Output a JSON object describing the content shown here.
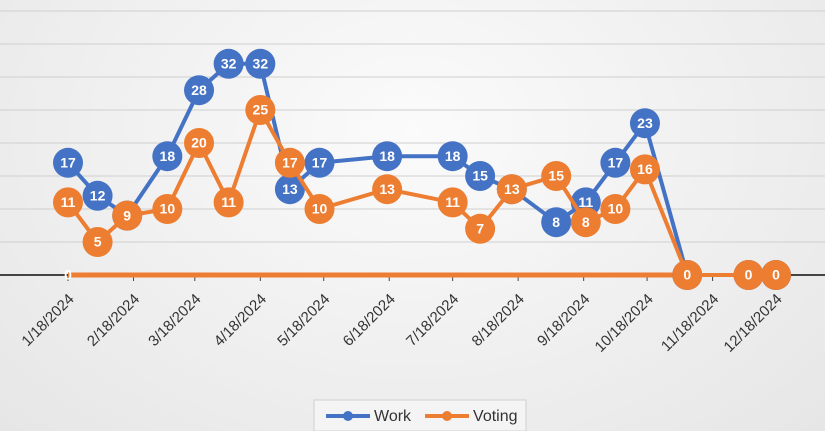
{
  "chart_data": {
    "type": "line",
    "x": [
      0,
      14,
      28,
      47,
      62,
      76,
      91,
      105,
      119,
      151,
      182,
      195,
      210,
      231,
      245,
      259,
      273,
      293,
      322,
      335
    ],
    "xlim": [
      0,
      335
    ],
    "xticks": [
      {
        "value": 0,
        "label": "1/18/2024"
      },
      {
        "value": 31,
        "label": "2/18/2024"
      },
      {
        "value": 60,
        "label": "3/18/2024"
      },
      {
        "value": 91,
        "label": "4/18/2024"
      },
      {
        "value": 121,
        "label": "5/18/2024"
      },
      {
        "value": 152,
        "label": "6/18/2024"
      },
      {
        "value": 182,
        "label": "7/18/2024"
      },
      {
        "value": 213,
        "label": "8/18/2024"
      },
      {
        "value": 244,
        "label": "9/18/2024"
      },
      {
        "value": 274,
        "label": "10/18/2024"
      },
      {
        "value": 305,
        "label": "11/18/2024"
      },
      {
        "value": 335,
        "label": "12/18/2024"
      }
    ],
    "ylim": [
      0,
      40
    ],
    "yticks": [
      0,
      5,
      10,
      15,
      20,
      25,
      30,
      35,
      40
    ],
    "grid": true,
    "legend": "bottom",
    "series": [
      {
        "color": "#ed7d31",
        "values": [
          0,
          0,
          0,
          0,
          0,
          0,
          0,
          0,
          0,
          0,
          0,
          0,
          0,
          0,
          0,
          0,
          0,
          0,
          null,
          null
        ]
      },
      {
        "name": "Work",
        "color": "#4472c4",
        "values": [
          17,
          12,
          9,
          18,
          28,
          32,
          32,
          13,
          17,
          18,
          18,
          15,
          13,
          8,
          11,
          17,
          23,
          0,
          0,
          0
        ]
      },
      {
        "name": "Voting",
        "color": "#ed7d31",
        "values": [
          11,
          5,
          9,
          10,
          20,
          11,
          25,
          17,
          10,
          13,
          11,
          7,
          13,
          15,
          8,
          10,
          16,
          0,
          0,
          0
        ]
      }
    ]
  }
}
